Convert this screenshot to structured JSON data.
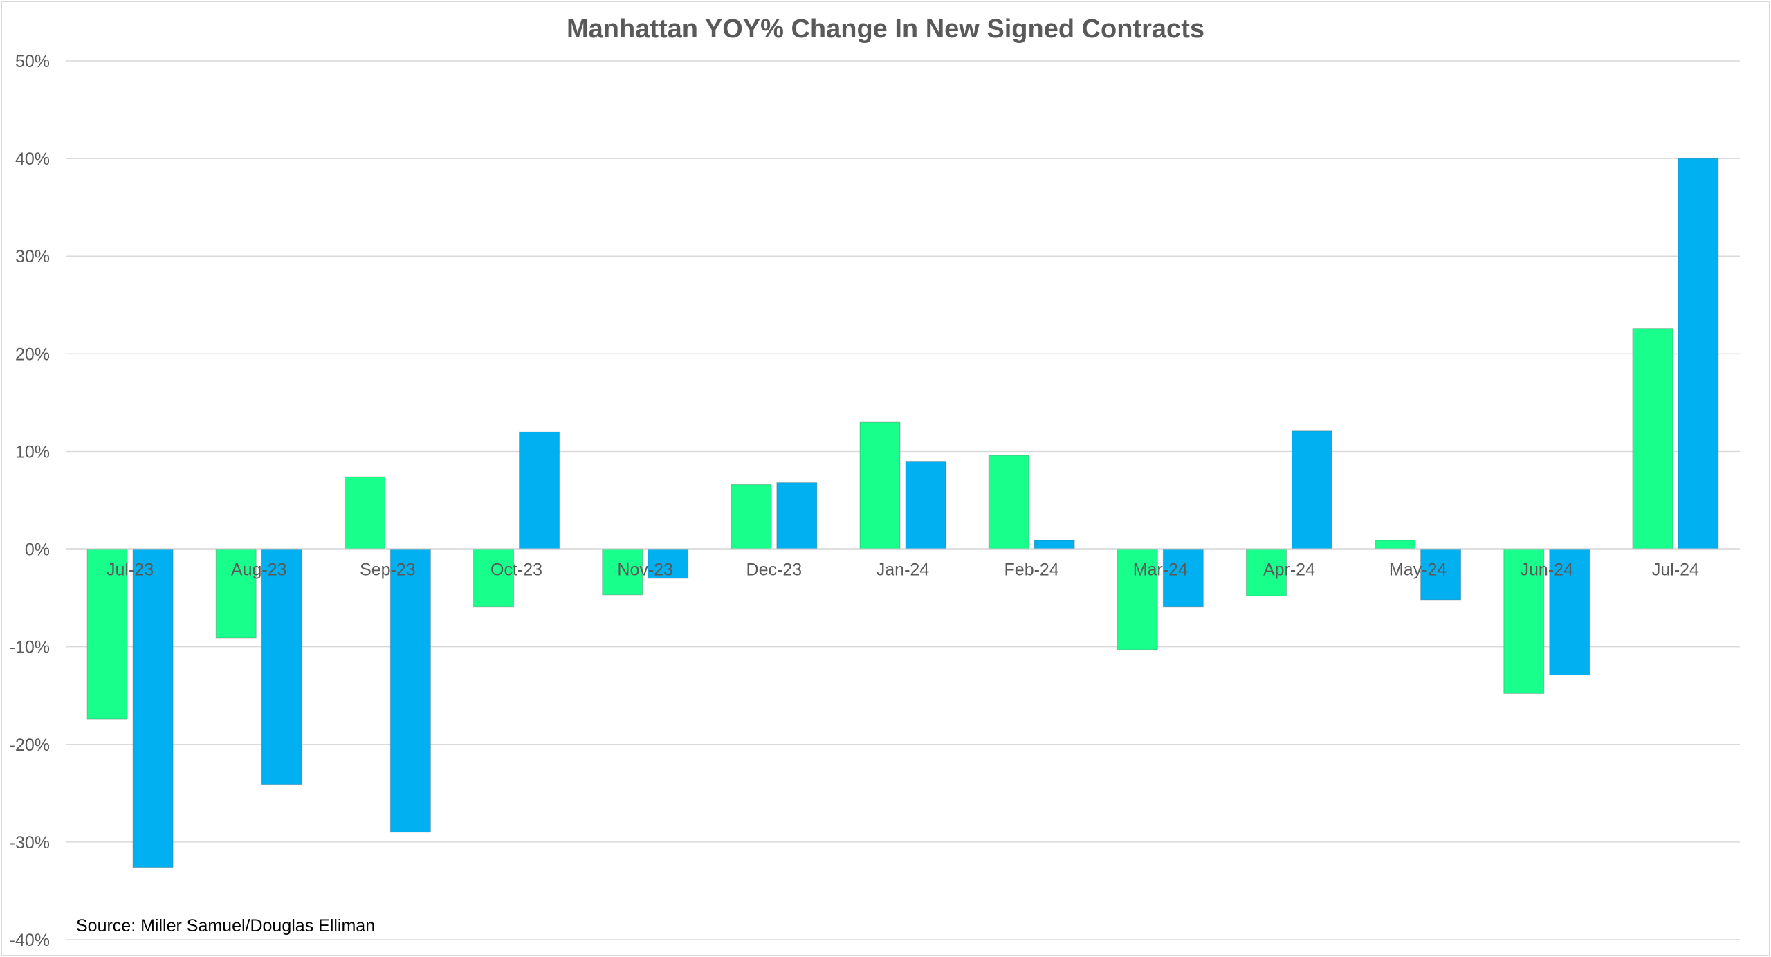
{
  "chart_data": {
    "type": "bar",
    "title": "Manhattan YOY% Change In New Signed Contracts",
    "xlabel": "",
    "ylabel": "",
    "categories": [
      "Jul-23",
      "Aug-23",
      "Sep-23",
      "Oct-23",
      "Nov-23",
      "Dec-23",
      "Jan-24",
      "Feb-24",
      "Mar-24",
      "Apr-24",
      "May-24",
      "Jun-24",
      "Jul-24"
    ],
    "series": [
      {
        "color": "#19ff8c",
        "values": [
          -17.4,
          -9.1,
          7.4,
          -5.9,
          -4.7,
          6.6,
          13.0,
          9.6,
          -10.3,
          -4.8,
          0.9,
          -14.8,
          22.6
        ]
      },
      {
        "color": "#00b0f0",
        "values": [
          -32.6,
          -24.1,
          -29.0,
          12.0,
          -3.0,
          6.8,
          9.0,
          0.9,
          -5.9,
          12.1,
          -5.2,
          -12.9,
          40.0
        ]
      }
    ],
    "ylim": [
      -40,
      50
    ],
    "yticks": [
      50,
      40,
      30,
      20,
      10,
      0,
      -10,
      -20,
      -30,
      -40
    ],
    "ytick_labels": [
      "50%",
      "40%",
      "30%",
      "20%",
      "10%",
      "0%",
      "-10%",
      "-20%",
      "-30%",
      "-40%"
    ],
    "grid": true,
    "legend": "none",
    "annotation": "Source: Miller Samuel/Douglas Elliman"
  }
}
